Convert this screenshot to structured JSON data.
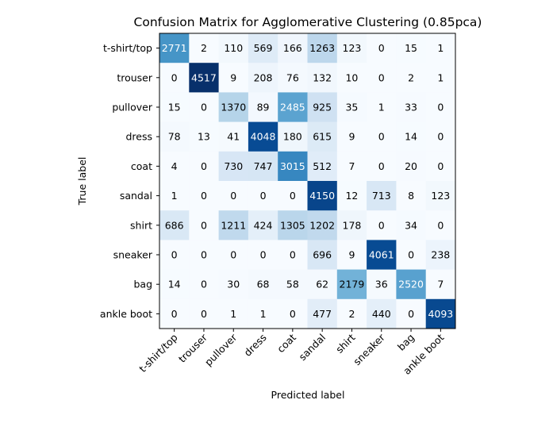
{
  "chart_data": {
    "type": "heatmap",
    "title": "Confusion Matrix for Agglomerative Clustering (0.85pca)",
    "xlabel": "Predicted label",
    "ylabel": "True label",
    "row_labels": [
      "t-shirt/top",
      "trouser",
      "pullover",
      "dress",
      "coat",
      "sandal",
      "shirt",
      "sneaker",
      "bag",
      "ankle boot"
    ],
    "col_labels": [
      "t-shirt/top",
      "trouser",
      "pullover",
      "dress",
      "coat",
      "sandal",
      "shirt",
      "sneaker",
      "bag",
      "ankle boot"
    ],
    "values": [
      [
        2771,
        2,
        110,
        569,
        166,
        1263,
        123,
        0,
        15,
        1
      ],
      [
        0,
        4517,
        9,
        208,
        76,
        132,
        10,
        0,
        2,
        1
      ],
      [
        15,
        0,
        1370,
        89,
        2485,
        925,
        35,
        1,
        33,
        0
      ],
      [
        78,
        13,
        41,
        4048,
        180,
        615,
        9,
        0,
        14,
        0
      ],
      [
        4,
        0,
        730,
        747,
        3015,
        512,
        7,
        0,
        20,
        0
      ],
      [
        1,
        0,
        0,
        0,
        0,
        4150,
        12,
        713,
        8,
        123
      ],
      [
        686,
        0,
        1211,
        424,
        1305,
        1202,
        178,
        0,
        34,
        0
      ],
      [
        0,
        0,
        0,
        0,
        0,
        696,
        9,
        4061,
        0,
        238
      ],
      [
        14,
        0,
        30,
        68,
        58,
        62,
        2179,
        36,
        2520,
        7
      ],
      [
        0,
        0,
        1,
        1,
        0,
        477,
        2,
        440,
        0,
        4093
      ]
    ],
    "colormap": "Blues",
    "vmin": 0,
    "vmax": 4517,
    "text_threshold": 2258.5,
    "text_color_light": "#ffffff",
    "text_color_dark": "#000000",
    "grid": false
  }
}
